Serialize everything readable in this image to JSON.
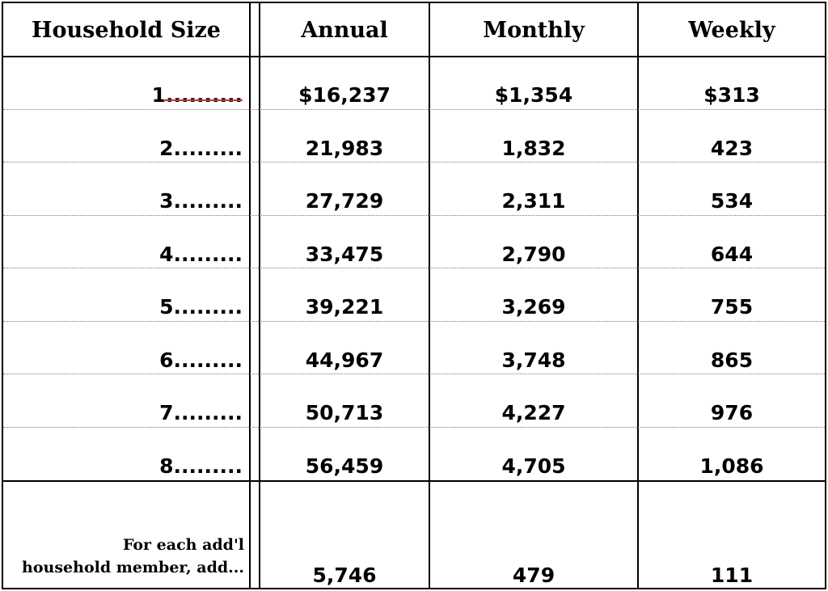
{
  "headers": {
    "household_size": "Household Size",
    "annual": "Annual",
    "monthly": "Monthly",
    "weekly": "Weekly"
  },
  "rows": [
    {
      "size": "1..........",
      "annual": "$16,237",
      "monthly": "$1,354",
      "weekly": "$313"
    },
    {
      "size": "2.........",
      "annual": "21,983",
      "monthly": "1,832",
      "weekly": "423"
    },
    {
      "size": "3.........",
      "annual": "27,729",
      "monthly": "2,311",
      "weekly": "534"
    },
    {
      "size": "4.........",
      "annual": "33,475",
      "monthly": "2,790",
      "weekly": "644"
    },
    {
      "size": "5.........",
      "annual": "39,221",
      "monthly": "3,269",
      "weekly": "755"
    },
    {
      "size": "6.........",
      "annual": "44,967",
      "monthly": "3,748",
      "weekly": "865"
    },
    {
      "size": "7.........",
      "annual": "50,713",
      "monthly": "4,227",
      "weekly": "976"
    },
    {
      "size": "8.........",
      "annual": "56,459",
      "monthly": "4,705",
      "weekly": "1,086"
    }
  ],
  "footer": {
    "label_line1": "For each add'l",
    "label_line2": "household member, add...",
    "annual": "5,746",
    "monthly": "479",
    "weekly": "111"
  },
  "colors": {
    "grid": "#000000",
    "dotted_rule": "#777777",
    "first_row_underline": "#c0392b"
  }
}
